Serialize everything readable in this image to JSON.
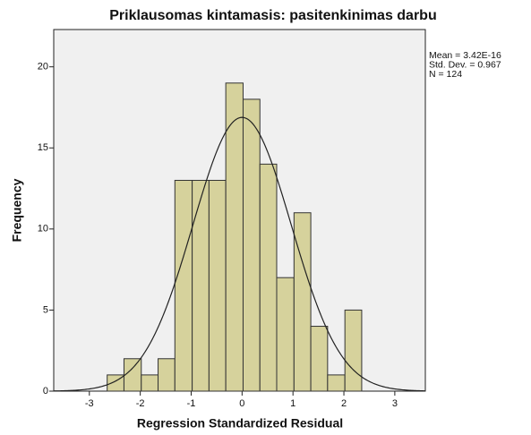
{
  "chart_data": {
    "type": "histogram",
    "title": "Priklausomas kintamasis: pasitenkinimas darbu",
    "xlabel": "Regression Standardized Residual",
    "ylabel": "Frequency",
    "bins": [
      -2.65,
      -2.32,
      -1.98,
      -1.65,
      -1.32,
      -0.98,
      -0.65,
      -0.32,
      0.02,
      0.35,
      0.68,
      1.02,
      1.35,
      1.68,
      2.02,
      2.35
    ],
    "values": [
      1,
      2,
      1,
      2,
      13,
      13,
      13,
      19,
      18,
      14,
      7,
      11,
      4,
      1,
      5
    ],
    "color": "#d6d29c",
    "xlim": [
      -3.7,
      3.6
    ],
    "xticks": [
      -3,
      -2,
      -1,
      0,
      1,
      2,
      3
    ],
    "ylim": [
      0,
      22.3
    ],
    "yticks": [
      0,
      5,
      10,
      15,
      20
    ],
    "stats": [
      {
        "value": 3.42e-16,
        "label": "Mean = 3.42E-16"
      },
      {
        "value": 0.967,
        "label": "Std. Dev. = 0.967"
      },
      {
        "value": 124,
        "label": "N = 124"
      }
    ],
    "curve_color": "#222222"
  }
}
